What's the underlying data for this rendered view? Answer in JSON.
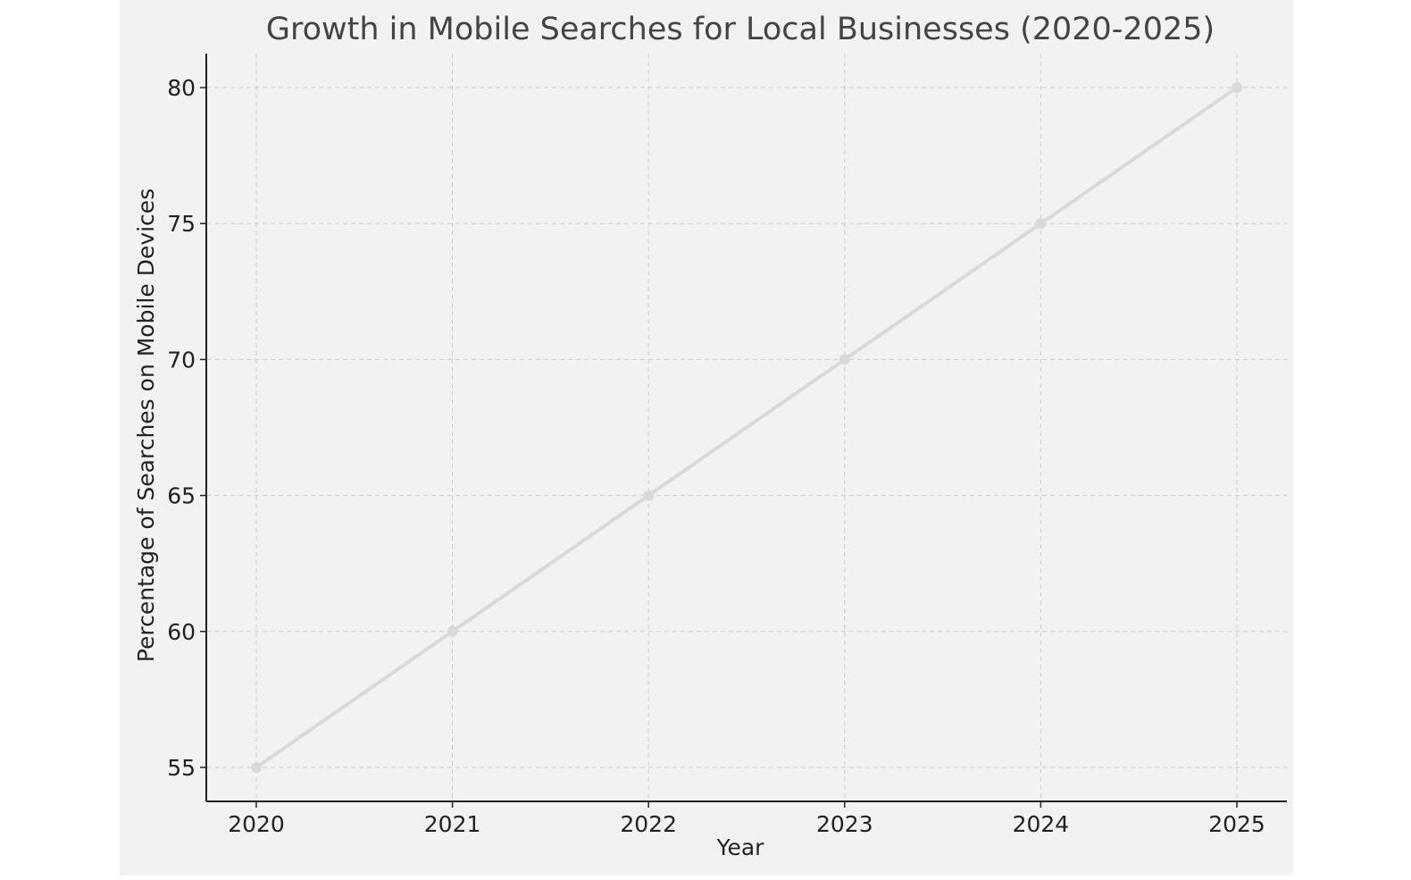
{
  "chart_data": {
    "type": "line",
    "title": "Growth in Mobile Searches for Local Businesses (2020-2025)",
    "xlabel": "Year",
    "ylabel": "Percentage of Searches on Mobile Devices",
    "categories": [
      "2020",
      "2021",
      "2022",
      "2023",
      "2024",
      "2025"
    ],
    "series": [
      {
        "values": [
          55,
          60,
          65,
          70,
          75,
          80
        ]
      }
    ],
    "yticks": [
      55,
      60,
      65,
      70,
      75,
      80
    ],
    "ylim": [
      53.75,
      81.25
    ],
    "grid": true,
    "colors": {
      "background": "#f2f2f2",
      "line": "#d9d9d9",
      "grid": "#cccccc",
      "axis": "#222222",
      "title": "#444444",
      "text": "#222222"
    }
  }
}
